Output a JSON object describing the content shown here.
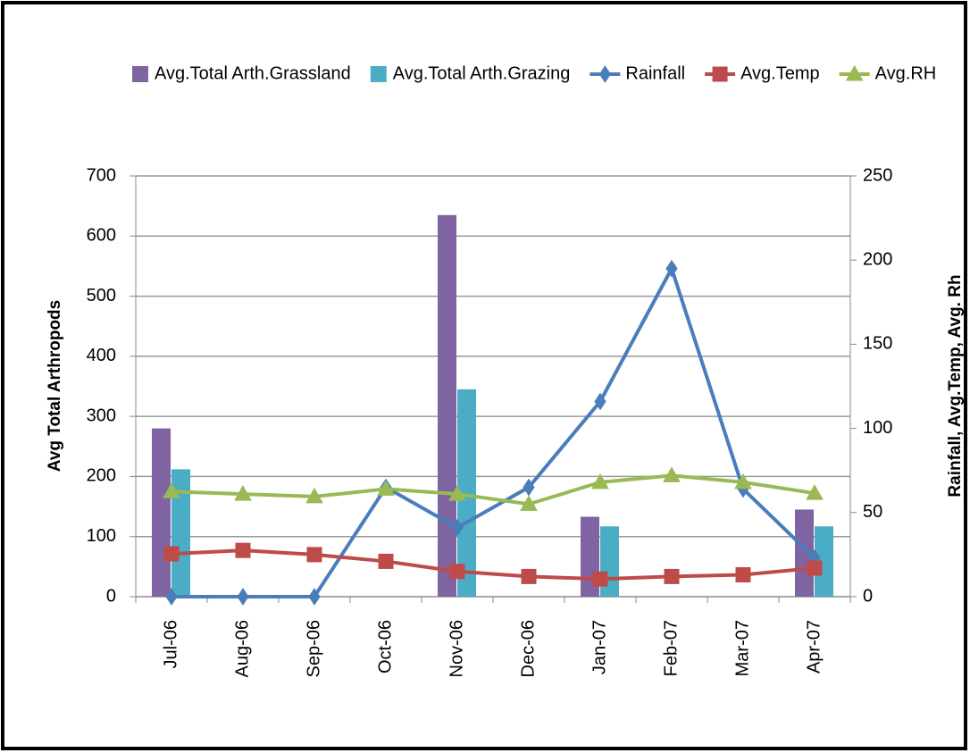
{
  "chart_data": {
    "type": "bar",
    "categories": [
      "Jul-06",
      "Aug-06",
      "Sep-06",
      "Oct-06",
      "Nov-06",
      "Dec-06",
      "Jan-07",
      "Feb-07",
      "Mar-07",
      "Apr-07"
    ],
    "y_label": "Avg Total Arthropods",
    "y2_label": "Rainfall, Avg.Temp, Avg. Rh",
    "ylim": [
      0,
      700
    ],
    "yticks": [
      0,
      100,
      200,
      300,
      400,
      500,
      600,
      700
    ],
    "y2lim": [
      0,
      250
    ],
    "y2ticks": [
      0,
      50,
      100,
      150,
      200,
      250
    ],
    "grid": true,
    "legend": "top",
    "series": [
      {
        "name": "Avg.Total Arth.Grassland",
        "type": "bar",
        "color": "#8064a2",
        "values": [
          280,
          null,
          null,
          null,
          635,
          null,
          133,
          null,
          null,
          145
        ]
      },
      {
        "name": "Avg.Total Arth.Grazing",
        "type": "bar",
        "color": "#4bacc6",
        "values": [
          212,
          null,
          null,
          null,
          345,
          null,
          117,
          null,
          null,
          117
        ]
      },
      {
        "name": "Rainfall",
        "type": "line",
        "axis": "y2",
        "marker": "diamond",
        "color": "#4a7ebb",
        "values": [
          0,
          0,
          0,
          65,
          41,
          65,
          116,
          195,
          64,
          23
        ]
      },
      {
        "name": "Avg.Temp",
        "type": "line",
        "axis": "y2",
        "marker": "square",
        "color": "#be4b48",
        "values": [
          25.5,
          27.5,
          25,
          21,
          15,
          12,
          10.5,
          12,
          13,
          17
        ]
      },
      {
        "name": "Avg.RH",
        "type": "line",
        "axis": "y2",
        "marker": "triangle",
        "color": "#98b954",
        "values": [
          62.5,
          61,
          59.5,
          64,
          61,
          55,
          68,
          72,
          68,
          61.5
        ]
      }
    ]
  }
}
